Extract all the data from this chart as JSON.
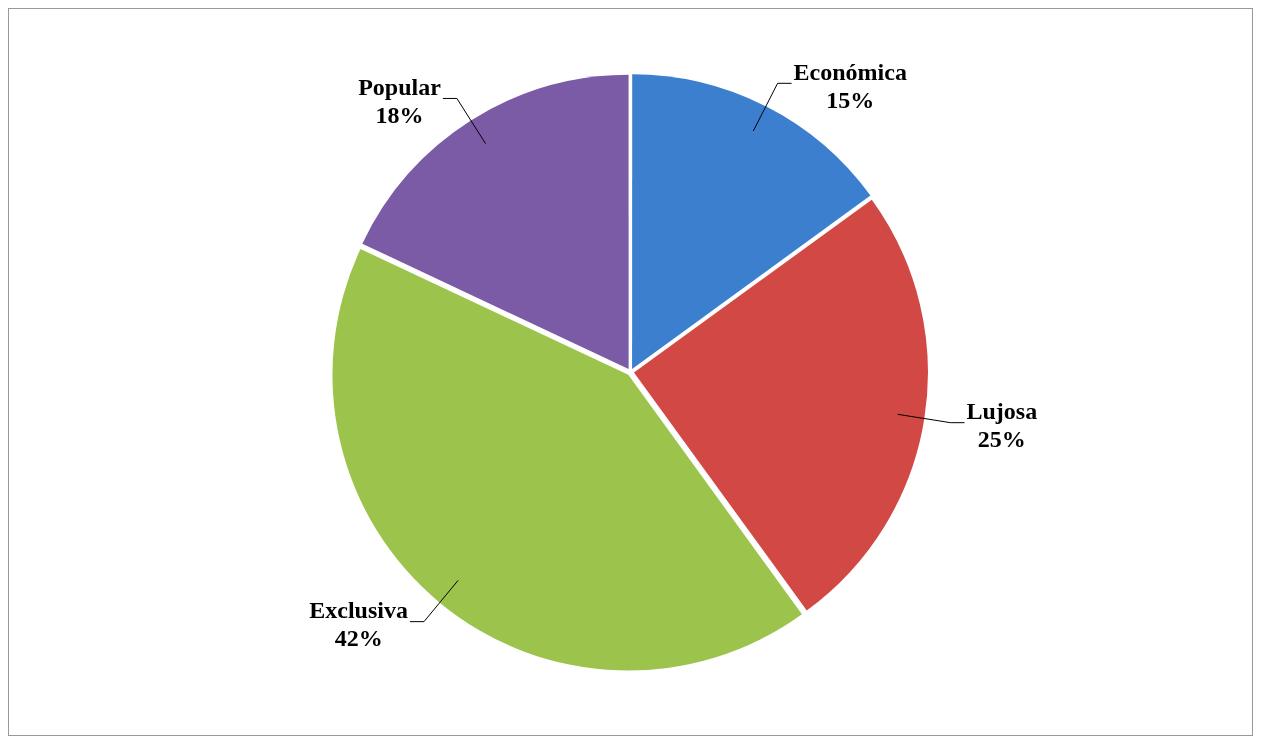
{
  "chart_data": {
    "type": "pie",
    "categories": [
      "Económica",
      "Lujosa",
      "Exclusiva",
      "Popular"
    ],
    "values": [
      15,
      25,
      42,
      18
    ],
    "value_labels": [
      "15%",
      "25%",
      "42%",
      "18%"
    ],
    "colors": [
      "#3d7fcf",
      "#d24844",
      "#9cc44c",
      "#7b5aa6"
    ],
    "legend": false
  }
}
